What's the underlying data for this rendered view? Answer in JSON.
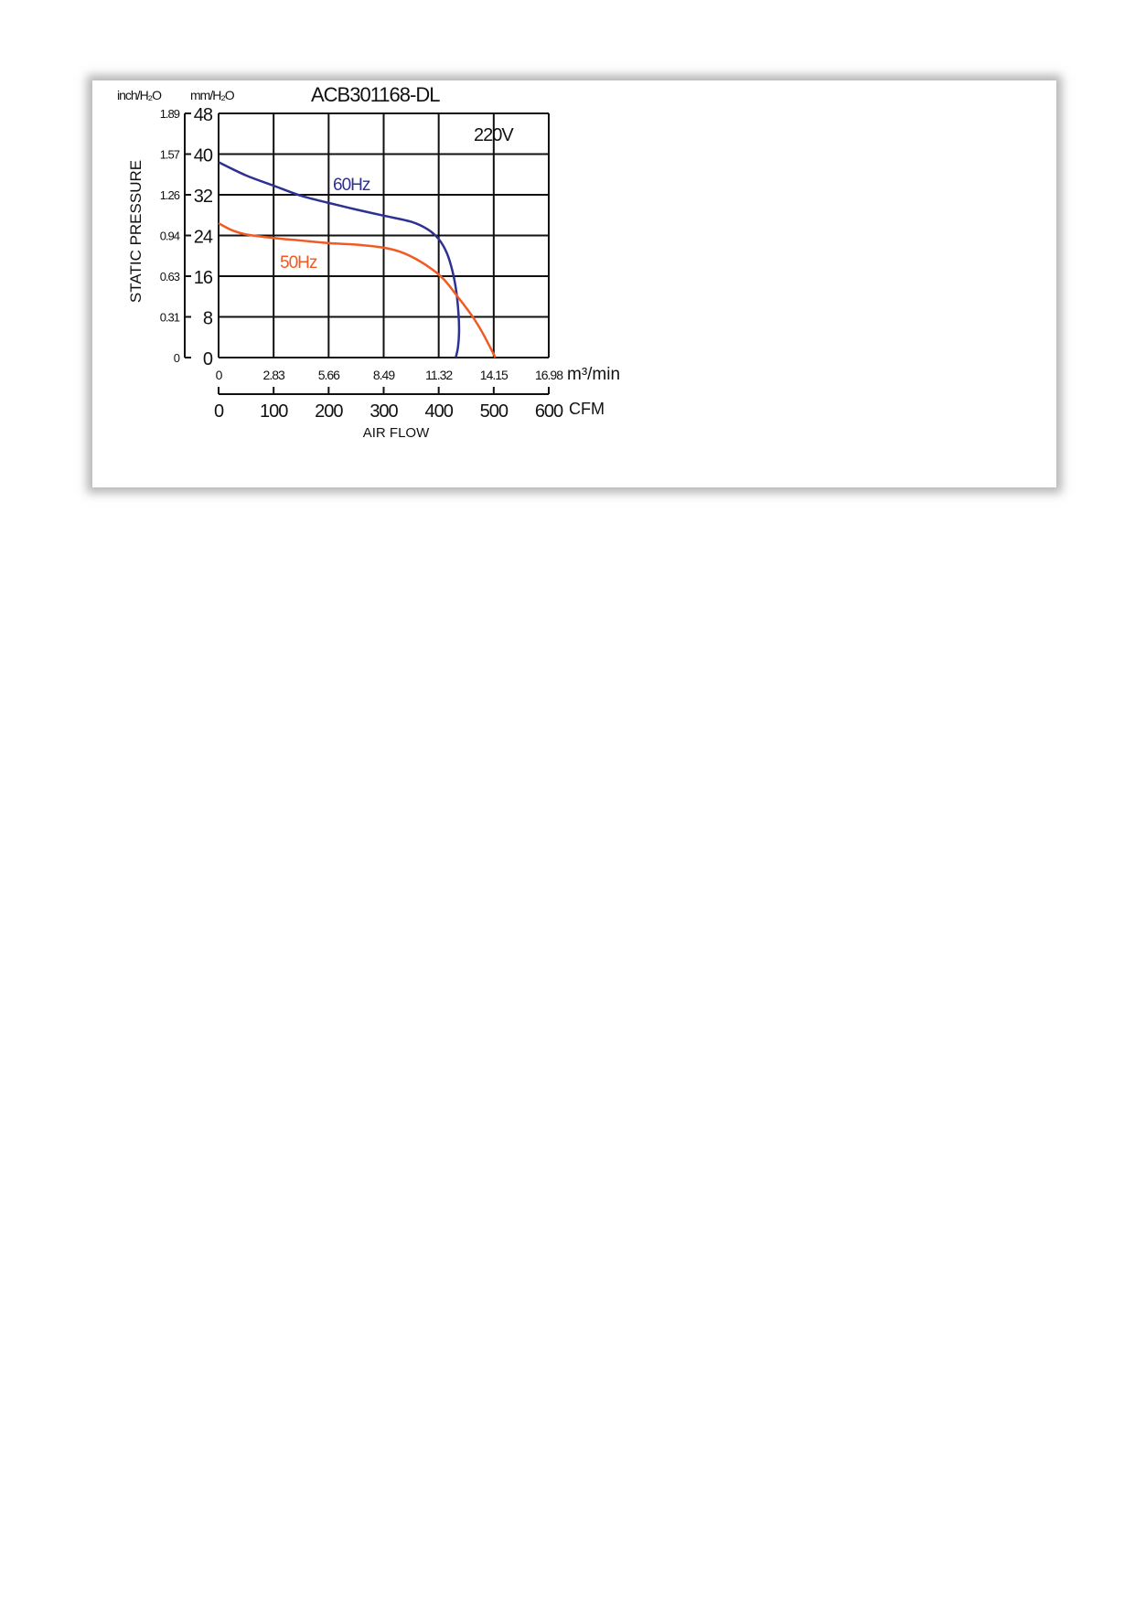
{
  "chart_data": {
    "type": "line",
    "title": "ACB301168-DL",
    "annotation": "220V",
    "ylabel": "STATIC PRESSURE",
    "y_unit_primary": "mm/H₂O",
    "y_unit_secondary": "inch/H₂O",
    "xlabel": "AIR FLOW",
    "x_unit_primary": "CFM",
    "x_unit_secondary": "m³/min",
    "xlim": [
      0,
      600
    ],
    "ylim": [
      0,
      48
    ],
    "grid": true,
    "x_ticks": [
      "0",
      "100",
      "200",
      "300",
      "400",
      "500",
      "600"
    ],
    "x_ticks_secondary": [
      "0",
      "2.83",
      "5.66",
      "8.49",
      "11.32",
      "14.15",
      "16.98"
    ],
    "y_ticks": [
      "0",
      "8",
      "16",
      "24",
      "32",
      "40",
      "48"
    ],
    "y_ticks_secondary": [
      "0",
      "0.31",
      "0.63",
      "0.94",
      "1.26",
      "1.57",
      "1.89"
    ],
    "series": [
      {
        "name": "60Hz",
        "color": "#2e3192",
        "x": [
          0,
          50,
          100,
          150,
          200,
          250,
          300,
          350,
          380,
          400,
          415,
          425,
          432,
          436,
          437,
          435,
          431
        ],
        "y": [
          38.4,
          35.8,
          33.8,
          31.8,
          30.4,
          29.1,
          27.9,
          26.7,
          25.2,
          23.3,
          20.5,
          17.0,
          13.0,
          8.6,
          5.0,
          2.0,
          0
        ]
      },
      {
        "name": "50Hz",
        "color": "#f15a22",
        "x": [
          0,
          25,
          50,
          100,
          150,
          200,
          250,
          300,
          330,
          360,
          390,
          410,
          430,
          460,
          480,
          503
        ],
        "y": [
          26.4,
          25.0,
          24.2,
          23.5,
          23.0,
          22.5,
          22.2,
          21.6,
          20.8,
          19.3,
          17.2,
          15.3,
          12.6,
          8.3,
          4.8,
          0
        ]
      }
    ]
  }
}
